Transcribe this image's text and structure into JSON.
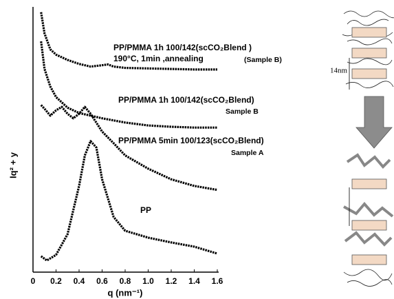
{
  "chart_data": {
    "type": "line",
    "x_label": "q (nm⁻¹)",
    "y_label": "Iq² + y",
    "xlim": [
      0,
      1.6
    ],
    "ylim": [
      0,
      100
    ],
    "xticks": [
      0,
      0.2,
      0.4,
      0.6,
      0.8,
      {
        "value": 1,
        "label": "1.0"
      },
      1.2,
      1.4,
      1.6
    ],
    "annotations": [
      "PP/PMMA 1h 100/142(scCO₂Blend )",
      "190°C, 1min ,annealing",
      "(Sample B)",
      "PP/PMMA 1h 100/142(scCO₂Blend)",
      "Sample B",
      "PP/PMMA 5min 100/123(scCO₂Blend)",
      "Sample A",
      "PP"
    ],
    "schematic_label": "14nm",
    "series": [
      {
        "color": "#000000",
        "x": [
          0.07,
          0.1,
          0.15,
          0.2,
          0.3,
          0.4,
          0.5,
          0.6,
          0.65,
          0.7,
          0.8,
          1.0,
          1.2,
          1.4,
          1.6
        ],
        "values": [
          98,
          90,
          84,
          82,
          80,
          78.5,
          77.5,
          78,
          78.3,
          77.5,
          77,
          76.8,
          76.6,
          76.4,
          76.4
        ]
      },
      {
        "color": "#000000",
        "x": [
          0.07,
          0.1,
          0.15,
          0.2,
          0.3,
          0.4,
          0.5,
          0.6,
          0.8,
          1.0,
          1.2,
          1.4,
          1.6
        ],
        "values": [
          87,
          76.6,
          70,
          66,
          62,
          60,
          59,
          58,
          56.4,
          55.3,
          54.8,
          54.5,
          54.5
        ]
      },
      {
        "color": "#000000",
        "x": [
          0.07,
          0.1,
          0.15,
          0.2,
          0.25,
          0.3,
          0.35,
          0.4,
          0.45,
          0.5,
          0.6,
          0.7,
          0.8,
          1.0,
          1.2,
          1.4,
          1.6
        ],
        "values": [
          63,
          61.6,
          59,
          61,
          62.3,
          59.7,
          58,
          59.7,
          62.3,
          59.7,
          53,
          48.6,
          44,
          39,
          35,
          32.5,
          31
        ]
      },
      {
        "color": "#000000",
        "x": [
          0.07,
          0.12,
          0.2,
          0.3,
          0.4,
          0.45,
          0.5,
          0.55,
          0.6,
          0.7,
          0.8,
          1.0,
          1.2,
          1.4,
          1.6
        ],
        "values": [
          6,
          4.4,
          6.5,
          14.3,
          32.5,
          44,
          49.4,
          47,
          35,
          20.8,
          15.6,
          13,
          11.2,
          9.6,
          7
        ]
      }
    ]
  }
}
